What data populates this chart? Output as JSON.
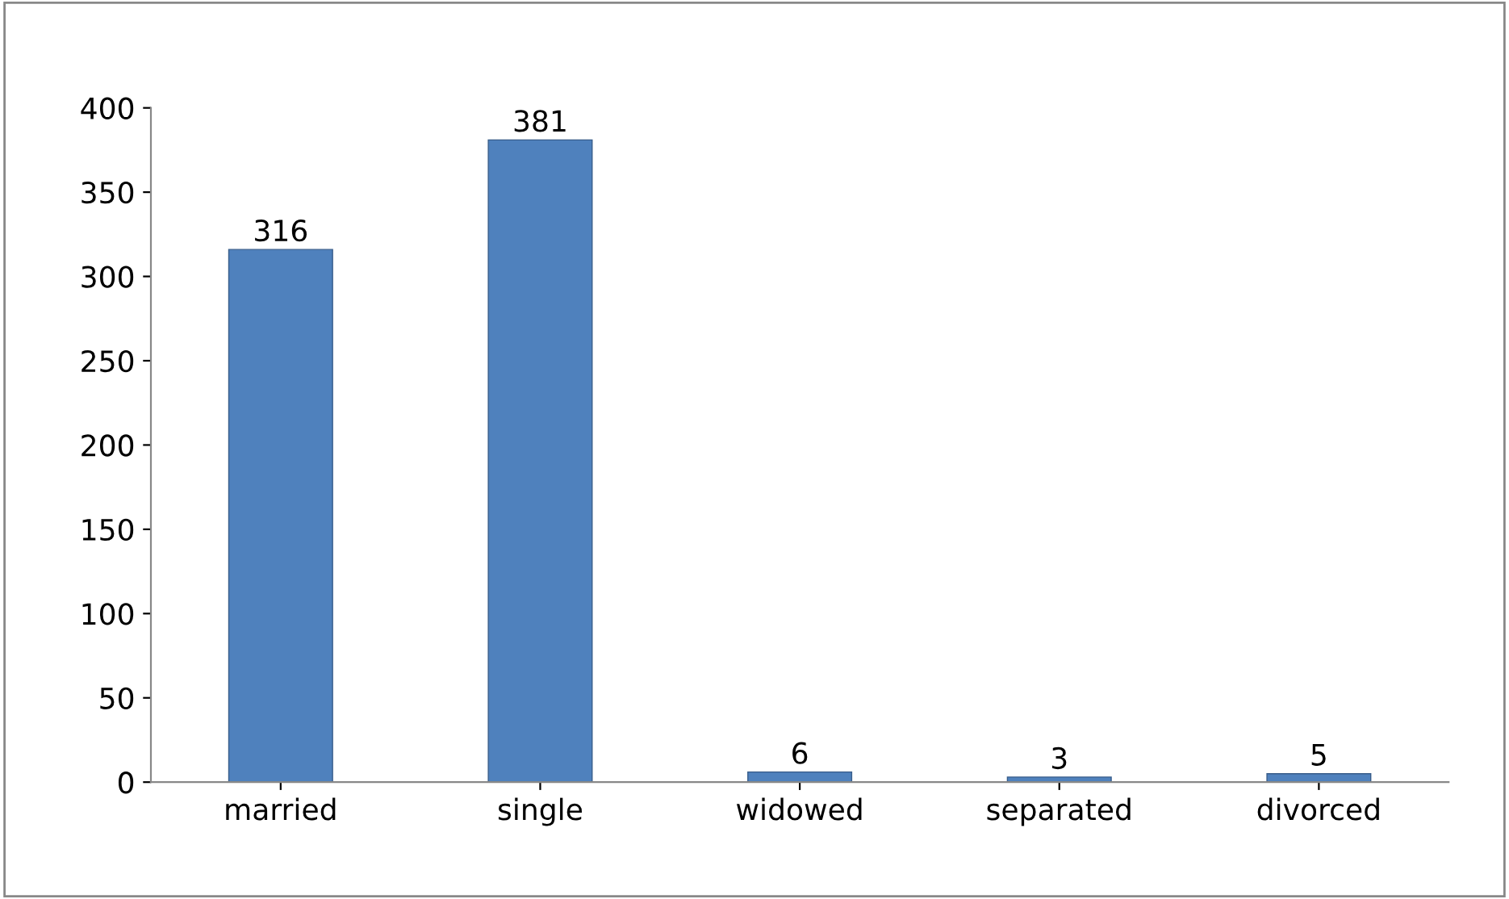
{
  "chart_data": {
    "type": "bar",
    "categories": [
      "married",
      "single",
      "widowed",
      "separated",
      "divorced"
    ],
    "values": [
      316,
      381,
      6,
      3,
      5
    ],
    "color": "#4f81bd",
    "ylim": [
      0,
      400
    ],
    "yticks": [
      0,
      50,
      100,
      150,
      200,
      250,
      300,
      350,
      400
    ],
    "data_labels": true,
    "grid": false,
    "legend": false
  }
}
